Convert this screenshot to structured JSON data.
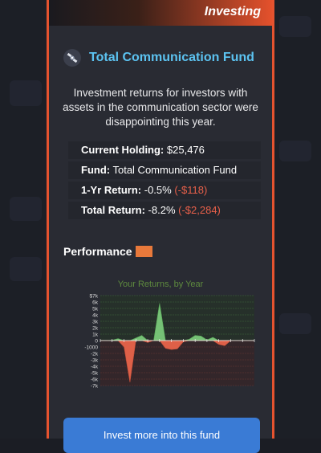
{
  "header": {
    "title": "Investing"
  },
  "fund": {
    "name": "Total Communication Fund",
    "description": "Investment returns for investors with assets in the communication sector were disappointing this year."
  },
  "info": {
    "current_holding_label": "Current Holding:",
    "current_holding_value": "$25,476",
    "fund_label": "Fund:",
    "fund_value": "Total Communication Fund",
    "one_yr_label": "1-Yr Return:",
    "one_yr_pct": "-0.5%",
    "one_yr_amt": "(-$118)",
    "total_label": "Total Return:",
    "total_pct": "-8.2%",
    "total_amt": "(-$2,284)"
  },
  "performance": {
    "label": "Performance",
    "swatch_color": "#e8793b"
  },
  "chart_data": {
    "type": "area",
    "title": "Your Returns, by Year",
    "y_tick_labels": [
      "$7k",
      "6k",
      "5k",
      "4k",
      "3k",
      "2k",
      "1k",
      "0",
      "-1000",
      "-2k",
      "-3k",
      "-4k",
      "-5k",
      "-6k",
      "-7k"
    ],
    "ylim": [
      -7000,
      7000
    ],
    "x": [
      0,
      1,
      2,
      3,
      4,
      5,
      6,
      7,
      8,
      9,
      10,
      11,
      12,
      13,
      14,
      15,
      16,
      17,
      18,
      19,
      20,
      21,
      22,
      23,
      24,
      25,
      26
    ],
    "values": [
      0,
      0,
      50,
      300,
      -1000,
      -6500,
      400,
      800,
      -300,
      0,
      5800,
      -1200,
      -1400,
      -1300,
      -200,
      200,
      800,
      700,
      100,
      500,
      -600,
      -800,
      0,
      0,
      0,
      0,
      0
    ],
    "positive_color": "#7ac97a",
    "negative_color": "#e8644a"
  },
  "invest_button": {
    "label": "Invest more into this fund"
  }
}
